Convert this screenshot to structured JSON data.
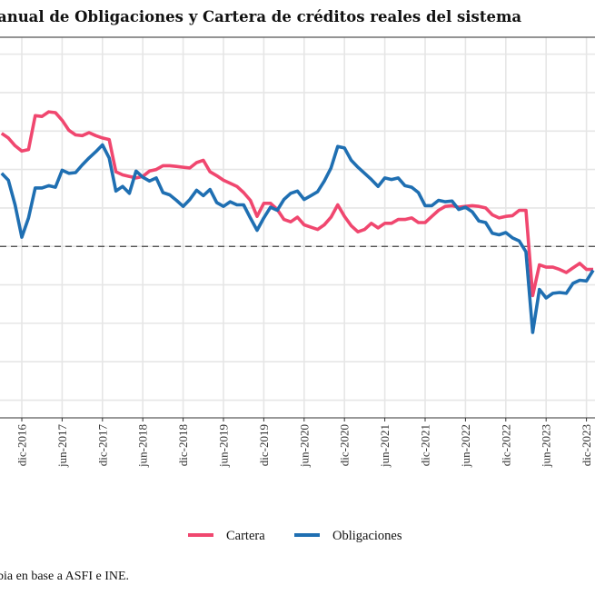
{
  "chart_data": {
    "type": "line",
    "title": "anual de Obligaciones y Cartera de créditos reales del sistema",
    "caption": "bia en base a ASFI e INE.",
    "xlabel": "",
    "ylabel": "",
    "x_start": "2016-09",
    "x_frequency": "monthly",
    "x_ticks": [
      "dic-2016",
      "jun-2017",
      "dic-2017",
      "jun-2018",
      "dic-2018",
      "jun-2019",
      "dic-2019",
      "jun-2020",
      "dic-2020",
      "jun-2021",
      "dic-2021",
      "jun-2022",
      "dic-2022",
      "jun-2023",
      "dic-2023"
    ],
    "ylim": [
      -22.3,
      27.2
    ],
    "y_gridlines": [
      -20,
      -15,
      -10,
      -5,
      0,
      5,
      10,
      15,
      20,
      25
    ],
    "reference_line": {
      "y": 0,
      "style": "dashed",
      "color": "#444444"
    },
    "grid": true,
    "legend_position": "bottom",
    "series": [
      {
        "name": "Cartera",
        "color": "#F0476F",
        "values": [
          14.7,
          14.1,
          13.1,
          12.4,
          12.6,
          17.0,
          16.9,
          17.5,
          17.4,
          16.4,
          15.1,
          14.5,
          14.4,
          14.8,
          14.4,
          14.1,
          13.9,
          9.7,
          9.3,
          9.1,
          8.9,
          9.1,
          9.8,
          10.0,
          10.5,
          10.5,
          10.4,
          10.3,
          10.2,
          10.9,
          11.2,
          9.7,
          9.2,
          8.6,
          8.2,
          7.8,
          7.0,
          6.0,
          3.9,
          5.6,
          5.6,
          4.8,
          3.5,
          3.2,
          3.8,
          2.8,
          2.5,
          2.2,
          2.8,
          3.8,
          5.4,
          3.9,
          2.7,
          1.9,
          2.2,
          3.0,
          2.4,
          3.0,
          3.0,
          3.5,
          3.5,
          3.7,
          3.1,
          3.1,
          3.9,
          4.7,
          5.2,
          5.3,
          5.1,
          5.2,
          5.3,
          5.2,
          5.0,
          4.1,
          3.7,
          3.9,
          4.0,
          4.7,
          4.7,
          -6.4,
          -2.4,
          -2.7,
          -2.7,
          -3.0,
          -3.4,
          -2.8,
          -2.2,
          -3.0,
          -3.0
        ]
      },
      {
        "name": "Obligaciones",
        "color": "#1F6FB2",
        "values": [
          9.5,
          8.6,
          5.4,
          1.2,
          3.7,
          7.6,
          7.6,
          7.9,
          7.7,
          9.9,
          9.5,
          9.6,
          10.6,
          11.5,
          12.3,
          13.2,
          11.5,
          7.2,
          7.8,
          6.9,
          9.8,
          9.0,
          8.5,
          8.9,
          7.0,
          6.7,
          6.0,
          5.2,
          6.1,
          7.3,
          6.6,
          7.4,
          5.7,
          5.2,
          5.8,
          5.4,
          5.4,
          3.7,
          2.1,
          3.7,
          5.1,
          4.7,
          6.1,
          6.9,
          7.2,
          6.1,
          6.6,
          7.1,
          8.5,
          10.2,
          13.0,
          12.8,
          11.2,
          10.3,
          9.5,
          8.7,
          7.8,
          8.9,
          8.7,
          8.9,
          7.9,
          7.7,
          7.0,
          5.3,
          5.3,
          6.0,
          5.8,
          5.9,
          4.8,
          5.1,
          4.5,
          3.3,
          3.1,
          1.7,
          1.5,
          1.8,
          1.1,
          0.7,
          -0.7,
          -11.2,
          -5.6,
          -6.7,
          -6.1,
          -6.0,
          -6.1,
          -4.8,
          -4.4,
          -4.5,
          -3.1
        ]
      }
    ]
  }
}
